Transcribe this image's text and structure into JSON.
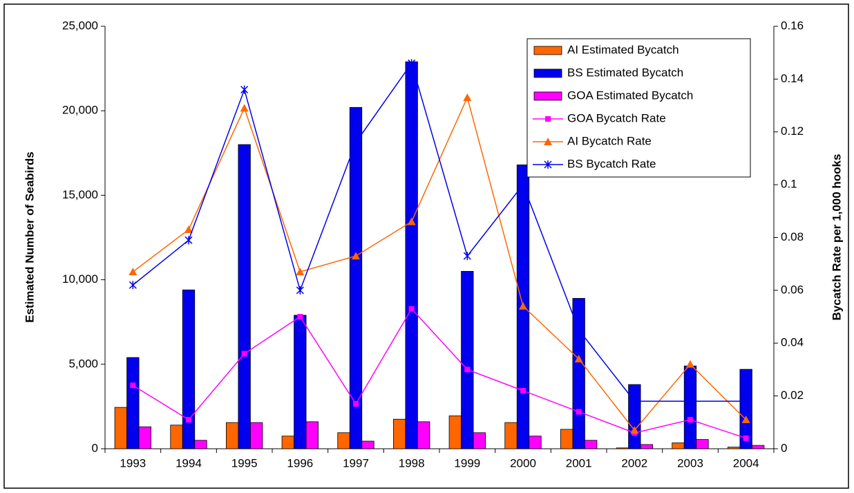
{
  "chart_data": {
    "type": "bar",
    "y_label": "Estimated Number of Seabirds",
    "y2_label": "Bycatch Rate per 1,000 hooks",
    "categories": [
      "1993",
      "1994",
      "1995",
      "1996",
      "1997",
      "1998",
      "1999",
      "2000",
      "2001",
      "2002",
      "2003",
      "2004"
    ],
    "ylim": [
      0,
      25000
    ],
    "yticks": [
      0,
      {
        "value": 5000,
        "label": "5,000"
      },
      {
        "value": 10000,
        "label": "10,000"
      },
      {
        "value": 15000,
        "label": "15,000"
      },
      {
        "value": 20000,
        "label": "20,000"
      },
      {
        "value": 25000,
        "label": "25,000"
      }
    ],
    "y2lim": [
      0,
      0.16
    ],
    "y2ticks": [
      0,
      0.02,
      0.04,
      0.06,
      0.08,
      0.1,
      0.12,
      0.14,
      0.16
    ],
    "grid": false,
    "legend": "upper right",
    "series": [
      {
        "name": "AI Estimated Bycatch",
        "type": "bar",
        "color": "#ff6600",
        "values": [
          2450,
          1400,
          1550,
          750,
          950,
          1750,
          1950,
          1550,
          1150,
          50,
          350,
          100
        ]
      },
      {
        "name": "BS Estimated Bycatch",
        "type": "bar",
        "color": "#0000ee",
        "values": [
          5400,
          9400,
          18000,
          7900,
          20200,
          22900,
          10500,
          16800,
          8900,
          3800,
          4900,
          4700
        ]
      },
      {
        "name": "GOA Estimated Bycatch",
        "type": "bar",
        "color": "#ff00ff",
        "values": [
          1300,
          500,
          1550,
          1600,
          450,
          1600,
          950,
          750,
          500,
          250,
          550,
          200
        ]
      },
      {
        "name": "GOA  Bycatch Rate",
        "type": "line",
        "axis": "y2",
        "marker": "square",
        "color": "#ff00ff",
        "values": [
          0.024,
          0.011,
          0.036,
          0.05,
          0.017,
          0.053,
          0.03,
          0.022,
          0.014,
          0.006,
          0.011,
          0.004
        ]
      },
      {
        "name": "AI  Bycatch Rate",
        "type": "line",
        "axis": "y2",
        "marker": "triangle",
        "color": "#ff6600",
        "values": [
          0.067,
          0.083,
          0.129,
          0.067,
          0.073,
          0.086,
          0.133,
          0.054,
          0.034,
          0.007,
          0.032,
          0.011
        ]
      },
      {
        "name": "BS  Bycatch Rate",
        "type": "line",
        "axis": "y2",
        "marker": "star",
        "color": "#0000ee",
        "values": [
          0.062,
          0.079,
          0.136,
          0.06,
          0.116,
          0.146,
          0.073,
          0.1,
          0.045,
          0.018,
          0.018,
          0.018
        ]
      }
    ]
  }
}
